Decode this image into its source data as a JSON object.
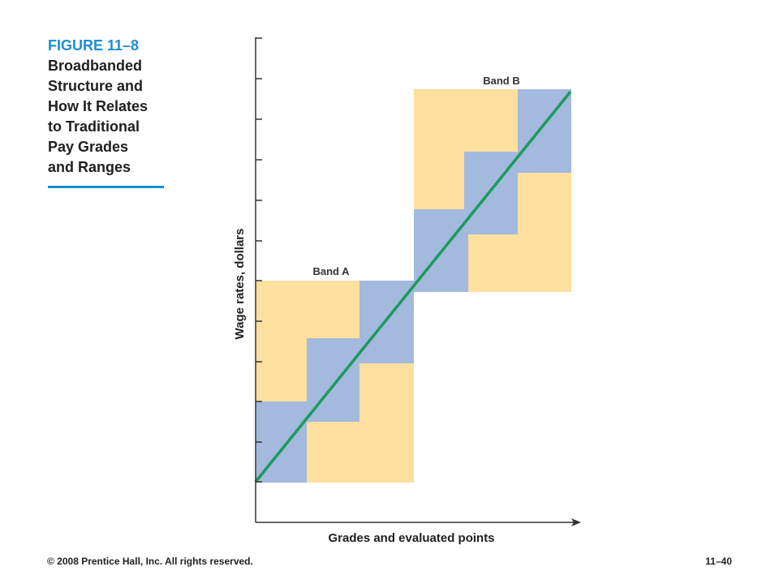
{
  "figure": {
    "number": "FIGURE 11–8",
    "title_lines": [
      "Broadbanded",
      "Structure and",
      "How It Relates",
      "to Traditional",
      "Pay Grades",
      "and Ranges"
    ]
  },
  "axes": {
    "y_label": "Wage rates, dollars",
    "x_label": "Grades and evaluated points"
  },
  "bands": [
    {
      "label": "Band A"
    },
    {
      "label": "Band B"
    }
  ],
  "colors": {
    "range_fill": "#fddf9e",
    "overlap_fill": "#a3b9de",
    "trend_line": "#1a9b5a",
    "accent": "#1a8fd1",
    "axis": "#333333"
  },
  "footer": {
    "copyright": "© 2008 Prentice Hall, Inc. All rights reserved.",
    "page": "11–40"
  }
}
